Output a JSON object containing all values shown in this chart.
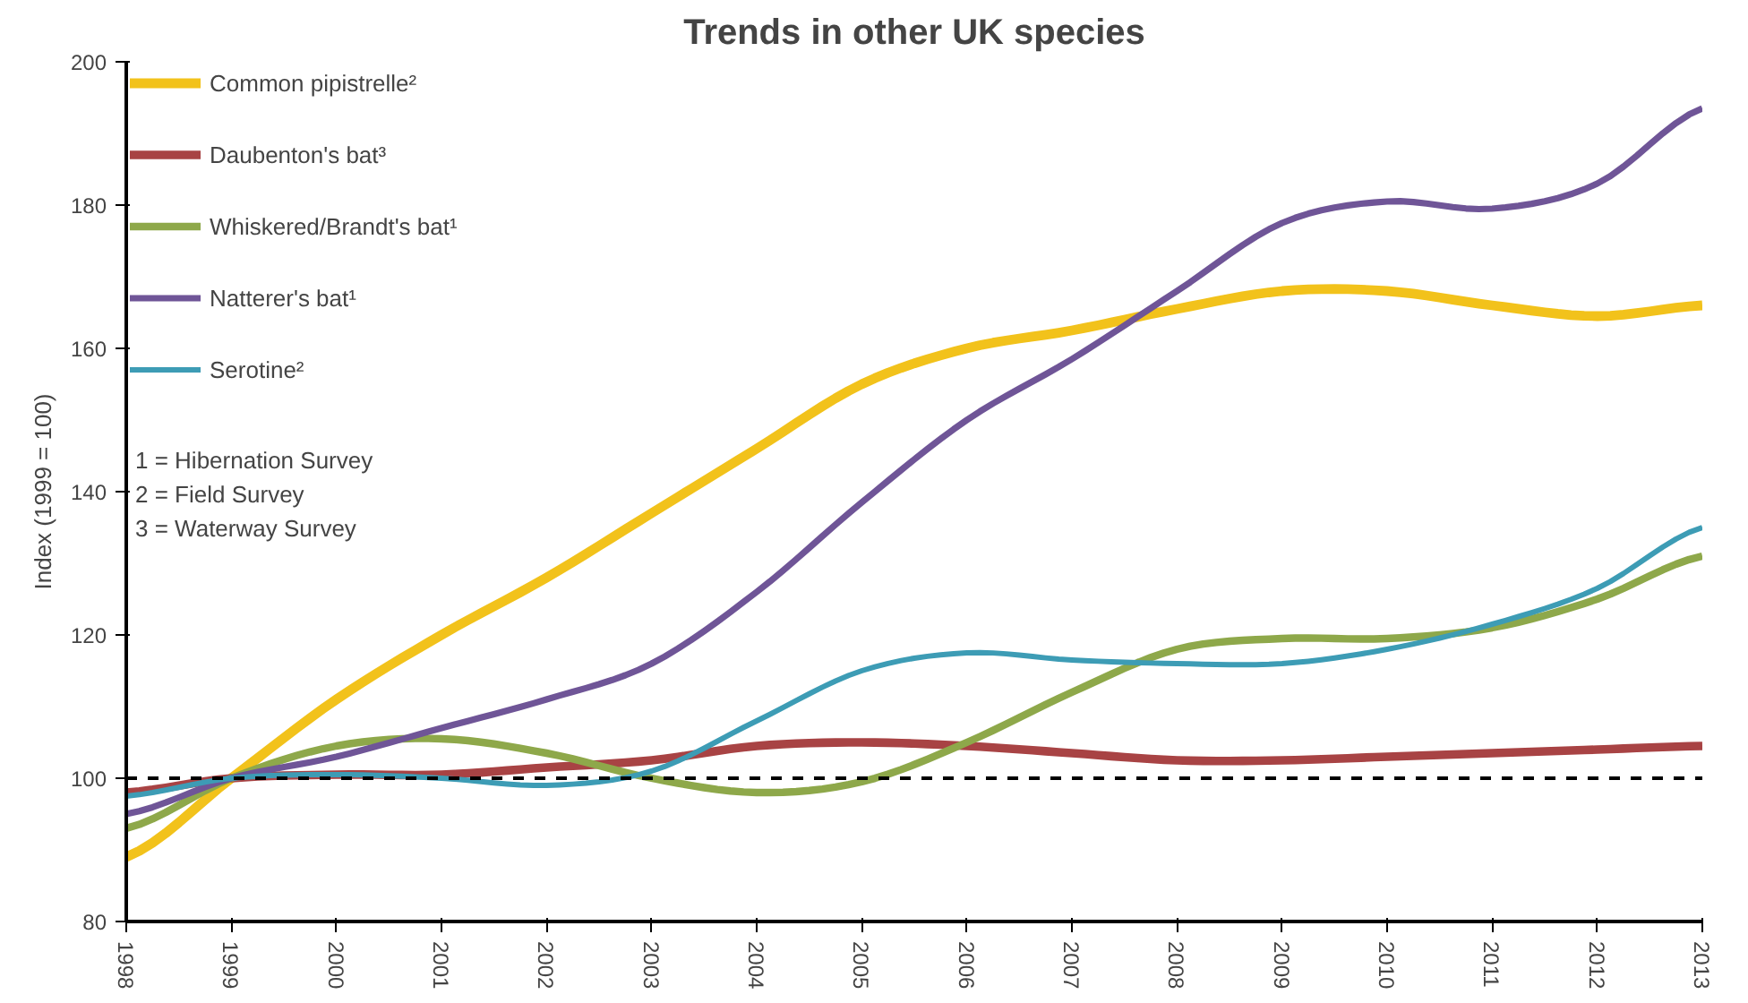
{
  "chart_data": {
    "type": "line",
    "title": "Trends in other UK species",
    "ylabel": "Index (1999 = 100)",
    "x": [
      1998,
      1999,
      2000,
      2001,
      2002,
      2003,
      2004,
      2005,
      2006,
      2007,
      2008,
      2009,
      2010,
      2011,
      2012,
      2013
    ],
    "xlim": [
      1998,
      2013
    ],
    "xticks": [
      1998,
      1999,
      2000,
      2001,
      2002,
      2003,
      2004,
      2005,
      2006,
      2007,
      2008,
      2009,
      2010,
      2011,
      2012,
      2013
    ],
    "ylim": [
      80,
      200
    ],
    "yticks": [
      80,
      100,
      120,
      140,
      160,
      180,
      200
    ],
    "series": [
      {
        "name": "Common pipistrelle²",
        "color": "#f2c21b",
        "values": [
          89,
          100,
          111,
          120,
          128,
          137,
          146,
          155,
          160,
          162.5,
          165.5,
          168,
          168,
          166,
          164.5,
          166
        ]
      },
      {
        "name": "Daubenton's bat³",
        "color": "#a84344",
        "values": [
          98,
          100,
          100.5,
          100.5,
          101.5,
          102.5,
          104.5,
          105,
          104.5,
          103.5,
          102.5,
          102.5,
          103,
          103.5,
          104,
          104.5
        ]
      },
      {
        "name": "Whiskered/Brandt's bat¹",
        "color": "#8ea84a",
        "values": [
          93,
          100,
          104.5,
          105.5,
          103.5,
          100,
          98,
          99.5,
          105,
          112,
          118,
          119.5,
          119.5,
          121,
          125,
          131
        ]
      },
      {
        "name": "Natterer's bat¹",
        "color": "#6f5597",
        "values": [
          95,
          100,
          103,
          107,
          111,
          116,
          126,
          138.5,
          150,
          158.5,
          168,
          177.5,
          180.5,
          179.5,
          183,
          193.5
        ]
      },
      {
        "name": "Serotine²",
        "color": "#3d9cb5",
        "values": [
          97.5,
          100,
          100.5,
          100,
          99,
          101,
          108,
          115,
          117.5,
          116.5,
          116,
          116,
          118,
          121.5,
          126.5,
          135
        ]
      }
    ],
    "ref_lines": [
      {
        "axis": "y",
        "value": 100,
        "color": "#000000",
        "line_style": "dashed"
      }
    ],
    "annotations": [
      "1 = Hibernation Survey",
      "2 = Field Survey",
      "3 = Waterway Survey"
    ],
    "grid": false,
    "legend": "top left",
    "line_style": "solid",
    "marker": "none"
  }
}
